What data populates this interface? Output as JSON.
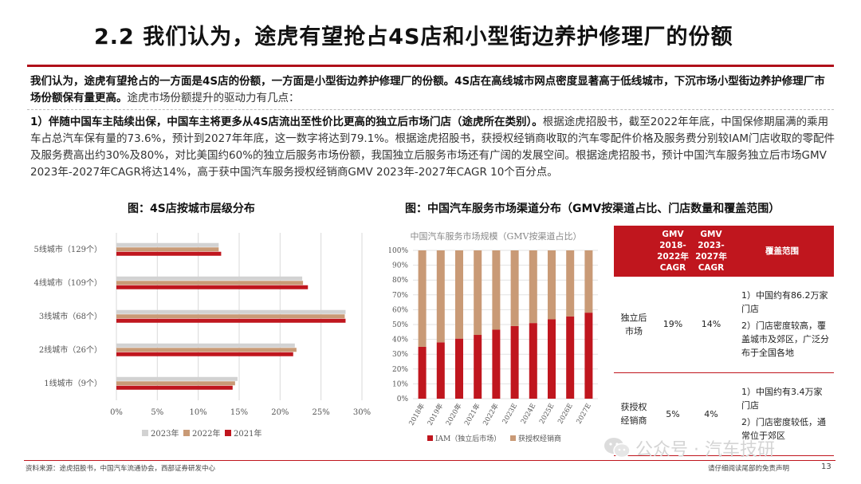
{
  "title": "2.2 我们认为，途虎有望抢占4S店和小型街边养护修理厂的份额",
  "intro": {
    "bold": "我们认为，途虎有望抢占的一方面是4S店的份额，一方面是小型街边养护修理厂的份额。4S店在高线城市网点密度显著高于低线城市，下沉市场小型街边养护修理厂市场份额保有量更高。",
    "normal": "途虎市场份额提升的驱动力有几点："
  },
  "para": {
    "bold": "1）伴随中国车主陆续出保，中国车主将更多从4S店流出至性价比更高的独立后市场门店（途虎所在类别）。",
    "normal": "根据途虎招股书，截至2022年年底，中国保修期届满的乘用车占总汽车保有量的73.6%，预计到2027年年底，这一数字将达到79.1%。根据途虎招股书，获授权经销商收取的汽车零配件价格及服务费分别较IAM门店收取的零配件及服务费高出约30%及80%，对比美国约60%的独立后服务市场份额，我国独立后服务市场还有广阔的发展空间。根据途虎招股书，预计中国汽车服务独立后市场GMV 2023年-2027年CAGR将达14%，高于获中国汽车服务授权经销商GMV 2023年-2027年CAGR 10个百分点。"
  },
  "chart_left_title": "图：4S店按城市层级分布",
  "chart_mid_title": "图：中国汽车服务市场渠道分布（GMV按渠道占比、门店数量和覆盖范围）",
  "chart_data": [
    {
      "type": "bar",
      "orientation": "horizontal",
      "categories": [
        "5线城市（129个）",
        "4线城市（109个）",
        "3线城市（68个）",
        "2线城市（26个）",
        "1线城市（9个）"
      ],
      "series": [
        {
          "name": "2023年",
          "color": "#d2d2d2",
          "values": [
            12.5,
            22.7,
            28.0,
            21.8,
            14.8
          ]
        },
        {
          "name": "2022年",
          "color": "#c99a76",
          "values": [
            12.5,
            22.8,
            27.9,
            22.0,
            14.5
          ]
        },
        {
          "name": "2021年",
          "color": "#c0161e",
          "values": [
            12.8,
            23.4,
            28.0,
            21.6,
            14.2
          ]
        }
      ],
      "xticks": [
        "0%",
        "5%",
        "10%",
        "15%",
        "20%",
        "25%",
        "30%"
      ],
      "xlim": [
        0,
        30
      ],
      "grid": true,
      "legend": "bottom"
    },
    {
      "type": "bar",
      "stacked": true,
      "title": "中国汽车服务市场规模（GMV按渠道占比）",
      "categories": [
        "2018年",
        "2019年",
        "2020年",
        "2021年",
        "2022年",
        "2023E",
        "2024E",
        "2025E",
        "2026E",
        "2027E"
      ],
      "series": [
        {
          "name": "IAM（独立后市场）",
          "color": "#c0161e",
          "values": [
            35,
            38,
            40.5,
            43,
            46.5,
            49,
            51,
            53.5,
            55.5,
            58
          ]
        },
        {
          "name": "获授权经销商",
          "color": "#c99a76",
          "values": [
            65,
            62,
            59.5,
            57,
            53.5,
            51,
            49,
            46.5,
            44.5,
            42
          ]
        }
      ],
      "yticks": [
        "0%",
        "10%",
        "20%",
        "30%",
        "40%",
        "50%",
        "60%",
        "70%",
        "80%",
        "90%",
        "100%"
      ],
      "ylim": [
        0,
        100
      ],
      "grid": true,
      "legend": "bottom"
    }
  ],
  "table": {
    "headers": [
      "",
      "GMV 2018-2022年 CAGR",
      "GMV 2023-2027年 CAGR",
      "覆盖范围"
    ],
    "rows": [
      {
        "label": "独立后市场",
        "c1": "19%",
        "c2": "14%",
        "cover": [
          "1）中国约有86.2万家门店",
          "2）门店密度较高，覆盖城市及郊区，广泛分布于全国各地"
        ]
      },
      {
        "label": "获授权经销商",
        "c1": "5%",
        "c2": "4%",
        "cover": [
          "1）中国约有3.4万家门店",
          "2）门店密度较低，通常位于郊区"
        ]
      }
    ]
  },
  "source": "资料来源：途虎招股书，中国汽车流通协会，西部证券研发中心",
  "watermark": "公众号 · 汽车技研",
  "disclaimer": "请仔细阅读尾部的免责声明",
  "page_number": "13"
}
